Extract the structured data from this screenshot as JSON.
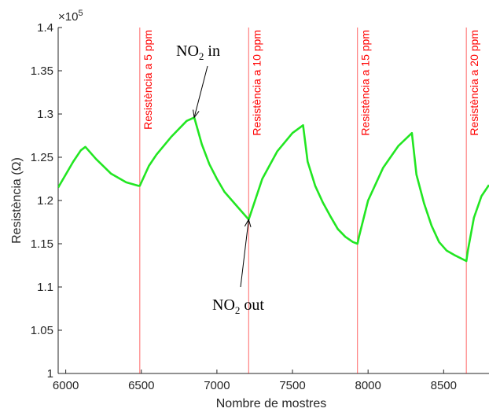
{
  "chart_data": {
    "type": "line",
    "title": "",
    "xlabel": "Nombre de mostres",
    "ylabel": "Resistència (Ω)",
    "xlim": [
      5950,
      8800
    ],
    "ylim": [
      100000,
      140000
    ],
    "y_scale_label": "×10",
    "y_scale_exp": "5",
    "xticks": [
      6000,
      6500,
      7000,
      7500,
      8000,
      8500
    ],
    "xtick_labels": [
      "6000",
      "6500",
      "7000",
      "7500",
      "8000",
      "8500"
    ],
    "yticks": [
      100000,
      105000,
      110000,
      115000,
      120000,
      125000,
      130000,
      135000,
      140000
    ],
    "ytick_labels": [
      "1",
      "1.05",
      "1.1",
      "1.15",
      "1.2",
      "1.25",
      "1.3",
      "1.35",
      "1.4"
    ],
    "grid": false,
    "colors": {
      "series": "#22e622",
      "markers": "#ff0000",
      "axes": "#262626"
    },
    "series": [
      {
        "x": [
          5950,
          6000,
          6050,
          6100,
          6130,
          6200,
          6300,
          6400,
          6480,
          6490,
          6550,
          6600,
          6700,
          6800,
          6850,
          6900,
          6950,
          7000,
          7050,
          7100,
          7150,
          7210,
          7220,
          7300,
          7400,
          7500,
          7570,
          7600,
          7650,
          7700,
          7750,
          7800,
          7850,
          7900,
          7930,
          7940,
          8000,
          8100,
          8200,
          8290,
          8320,
          8370,
          8420,
          8470,
          8520,
          8570,
          8650,
          8660,
          8700,
          8750,
          8800
        ],
        "y": [
          121500,
          123000,
          124500,
          125800,
          126200,
          124800,
          123100,
          122100,
          121700,
          121700,
          124000,
          125300,
          127400,
          129200,
          129600,
          126500,
          124200,
          122500,
          121000,
          120000,
          119000,
          117800,
          118300,
          122500,
          125700,
          127800,
          128700,
          124500,
          121700,
          119800,
          118200,
          116700,
          115800,
          115200,
          115000,
          115800,
          120000,
          123800,
          126300,
          127800,
          123000,
          119700,
          117100,
          115200,
          114200,
          113700,
          113000,
          114200,
          118000,
          120500,
          121800
        ]
      }
    ],
    "vlines": [
      {
        "x": 6490,
        "label": "Resistència a 5 ppm"
      },
      {
        "x": 7210,
        "label": "Resistència a 10 ppm"
      },
      {
        "x": 7930,
        "label": "Resistència a 15 ppm"
      },
      {
        "x": 8650,
        "label": "Resistència a 20 ppm"
      }
    ],
    "annotations": [
      {
        "text": "NO",
        "sub": "2",
        "suffix": " in",
        "point": [
          6850,
          129600
        ]
      },
      {
        "text": "NO",
        "sub": "2",
        "suffix": " out",
        "point": [
          7210,
          117800
        ]
      }
    ]
  }
}
